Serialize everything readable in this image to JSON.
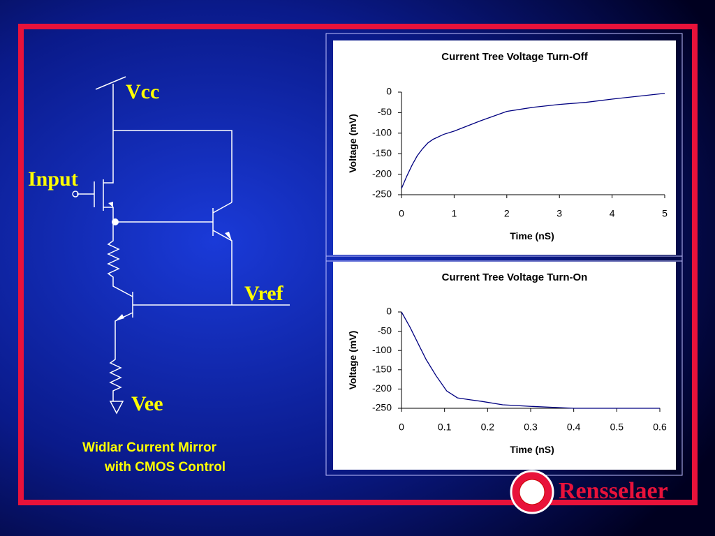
{
  "chart_data": [
    {
      "type": "line",
      "title": "Current Tree Voltage Turn-Off",
      "x_label": "Time (nS)",
      "y_label": "Voltage (mV)",
      "x": [
        0,
        0.1,
        0.2,
        0.3,
        0.4,
        0.5,
        0.6,
        0.8,
        1,
        1.5,
        2,
        2.5,
        3,
        3.5,
        4,
        4.5,
        5
      ],
      "series": [
        {
          "name": "Turn-Off",
          "color": "#000080",
          "values": [
            -235,
            -205,
            -178,
            -155,
            -138,
            -124,
            -115,
            -103,
            -95,
            -70,
            -47,
            -37,
            -30,
            -25,
            -17,
            -10,
            -3
          ]
        }
      ],
      "xlim": [
        0,
        5
      ],
      "xticks": [
        0,
        1,
        2,
        3,
        4,
        5
      ],
      "ylim": [
        -250,
        0
      ],
      "yticks": [
        -250,
        -200,
        -150,
        -100,
        -50,
        0
      ],
      "grid": false
    },
    {
      "type": "line",
      "title": "Current Tree Voltage Turn-On",
      "x_label": "Time (nS)",
      "y_label": "Voltage (mV)",
      "x": [
        0,
        0.02,
        0.04,
        0.057,
        0.08,
        0.105,
        0.13,
        0.16,
        0.186,
        0.235,
        0.3,
        0.4,
        0.5,
        0.6
      ],
      "series": [
        {
          "name": "Turn-On",
          "color": "#000080",
          "values": [
            0,
            -40,
            -85,
            -123,
            -165,
            -205,
            -223,
            -228,
            -232,
            -241,
            -245,
            -250,
            -250,
            -250
          ]
        }
      ],
      "xlim": [
        0,
        0.6
      ],
      "xticks": [
        0,
        0.1,
        0.2,
        0.3,
        0.4,
        0.5,
        0.6
      ],
      "ylim": [
        -250,
        0
      ],
      "yticks": [
        -250,
        -200,
        -150,
        -100,
        -50,
        0
      ],
      "grid": false
    }
  ],
  "diagram": {
    "labels": {
      "vcc": "Vcc",
      "input": "Input",
      "vref": "Vref",
      "vee": "Vee"
    },
    "caption": [
      "Widlar Current Mirror",
      "with CMOS Control"
    ]
  },
  "logo": "Rensselaer"
}
